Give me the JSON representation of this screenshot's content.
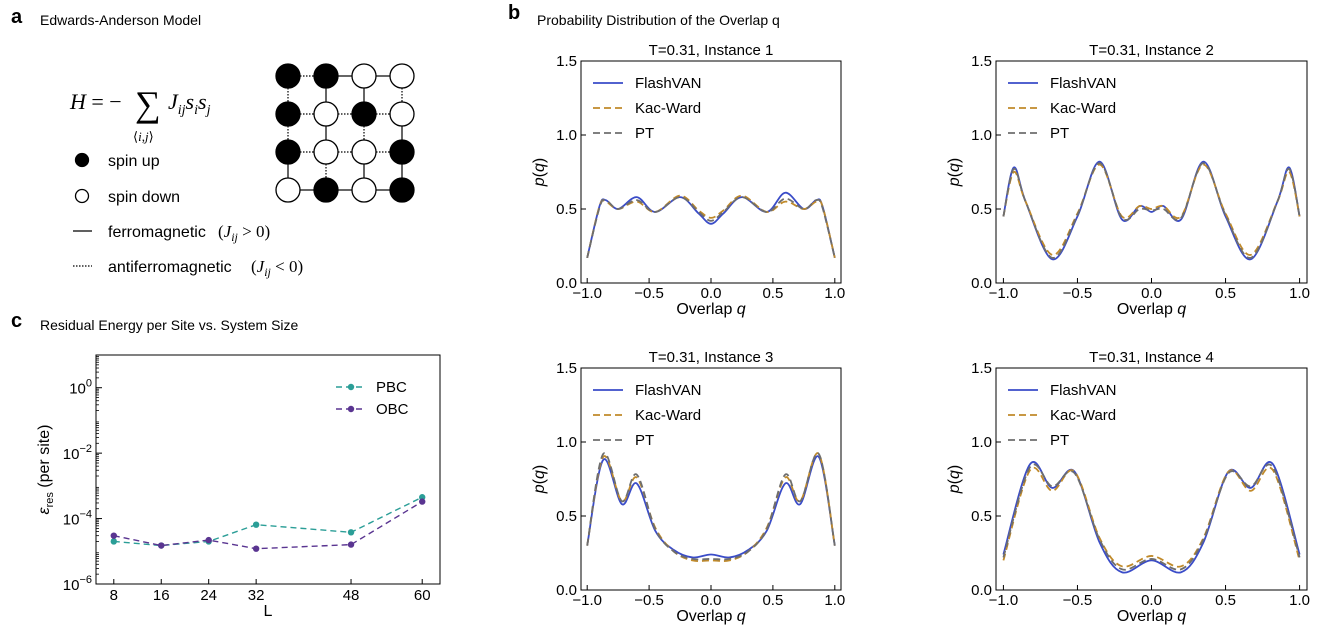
{
  "panel_labels": {
    "a": "a",
    "b": "b",
    "c": "c"
  },
  "panel_a": {
    "title": "Edwards-Anderson Model",
    "legend": {
      "spin_up": "spin up",
      "spin_down": "spin down",
      "ferro": "ferromagnetic",
      "ferro_cond": "> 0)",
      "antiferro": "antiferromagnetic",
      "antiferro_cond": "< 0)"
    },
    "lattice": {
      "spins": [
        [
          1,
          1,
          0,
          0
        ],
        [
          1,
          0,
          1,
          0
        ],
        [
          1,
          0,
          0,
          1
        ],
        [
          0,
          1,
          0,
          1
        ]
      ],
      "horizontal_bonds": [
        [
          0,
          1,
          1
        ],
        [
          0,
          0,
          0
        ],
        [
          0,
          0,
          0
        ],
        [
          1,
          1,
          1
        ]
      ],
      "vertical_bonds": [
        [
          0,
          1,
          1,
          0
        ],
        [
          0,
          1,
          0,
          1
        ],
        [
          1,
          0,
          1,
          1
        ]
      ],
      "legend_note": "1 = solid/filled (spin up, ferromagnetic), 0 = open/dotted"
    },
    "colors": {
      "spin_up": "#000000",
      "spin_down": "#ffffff",
      "bond": "#000000"
    }
  },
  "panel_b": {
    "title": "Probability Distribution of the Overlap q"
  },
  "panel_c": {
    "title": "Residual Energy per Site vs. System Size"
  },
  "chart_data": [
    {
      "type": "line",
      "title": "T=0.31, Instance 1",
      "xlabel": "Overlap q",
      "ylabel": "p(q)",
      "xlim": [
        -1.05,
        1.05
      ],
      "ylim": [
        0.0,
        1.5
      ],
      "xticks": [
        -1.0,
        -0.5,
        0.0,
        0.5,
        1.0
      ],
      "xtick_labels": [
        "−1.0",
        "−0.5",
        "0.0",
        "0.5",
        "1.0"
      ],
      "yticks": [
        0.0,
        0.5,
        1.0,
        1.5
      ],
      "ytick_labels": [
        "0.0",
        "0.5",
        "1.0",
        "1.5"
      ],
      "legend_position": "top-left",
      "x": [
        -1.0,
        -0.9,
        -0.85,
        -0.75,
        -0.6,
        -0.45,
        -0.25,
        -0.1,
        0.0,
        0.1,
        0.25,
        0.45,
        0.6,
        0.75,
        0.85,
        0.9,
        1.0
      ],
      "series": [
        {
          "name": "FlashVAN",
          "color": "#3a4cc8",
          "dash": "",
          "values": [
            0.17,
            0.52,
            0.56,
            0.5,
            0.58,
            0.48,
            0.58,
            0.47,
            0.4,
            0.47,
            0.58,
            0.48,
            0.61,
            0.5,
            0.56,
            0.52,
            0.17
          ]
        },
        {
          "name": "Kac-Ward",
          "color": "#c08a2a",
          "dash": "7,4",
          "values": [
            0.17,
            0.52,
            0.55,
            0.5,
            0.55,
            0.48,
            0.59,
            0.49,
            0.44,
            0.49,
            0.59,
            0.48,
            0.55,
            0.5,
            0.55,
            0.52,
            0.17
          ]
        },
        {
          "name": "PT",
          "color": "#6e6e6e",
          "dash": "7,4",
          "values": [
            0.17,
            0.51,
            0.56,
            0.5,
            0.56,
            0.48,
            0.58,
            0.48,
            0.42,
            0.48,
            0.58,
            0.48,
            0.57,
            0.5,
            0.56,
            0.51,
            0.17
          ]
        }
      ]
    },
    {
      "type": "line",
      "title": "T=0.31, Instance 2",
      "xlabel": "Overlap q",
      "ylabel": "p(q)",
      "xlim": [
        -1.05,
        1.05
      ],
      "ylim": [
        0.0,
        1.5
      ],
      "xticks": [
        -1.0,
        -0.5,
        0.0,
        0.5,
        1.0
      ],
      "xtick_labels": [
        "−1.0",
        "−0.5",
        "0.0",
        "0.5",
        "1.0"
      ],
      "yticks": [
        0.0,
        0.5,
        1.0,
        1.5
      ],
      "ytick_labels": [
        "0.0",
        "0.5",
        "1.0",
        "1.5"
      ],
      "legend_position": "top-left",
      "x": [
        -1.0,
        -0.93,
        -0.85,
        -0.67,
        -0.5,
        -0.35,
        -0.2,
        -0.08,
        0.0,
        0.08,
        0.2,
        0.35,
        0.5,
        0.67,
        0.85,
        0.93,
        1.0
      ],
      "series": [
        {
          "name": "FlashVAN",
          "color": "#3a4cc8",
          "dash": "",
          "values": [
            0.45,
            0.78,
            0.55,
            0.16,
            0.45,
            0.82,
            0.43,
            0.52,
            0.48,
            0.52,
            0.43,
            0.82,
            0.45,
            0.16,
            0.55,
            0.78,
            0.45
          ]
        },
        {
          "name": "Kac-Ward",
          "color": "#c08a2a",
          "dash": "7,4",
          "values": [
            0.45,
            0.75,
            0.55,
            0.19,
            0.47,
            0.8,
            0.45,
            0.52,
            0.5,
            0.52,
            0.45,
            0.8,
            0.47,
            0.19,
            0.55,
            0.75,
            0.45
          ]
        },
        {
          "name": "PT",
          "color": "#6e6e6e",
          "dash": "7,4",
          "values": [
            0.45,
            0.77,
            0.55,
            0.17,
            0.46,
            0.81,
            0.44,
            0.5,
            0.49,
            0.5,
            0.44,
            0.81,
            0.46,
            0.17,
            0.55,
            0.77,
            0.45
          ]
        }
      ]
    },
    {
      "type": "line",
      "title": "T=0.31, Instance 3",
      "xlabel": "Overlap q",
      "ylabel": "p(q)",
      "xlim": [
        -1.05,
        1.05
      ],
      "ylim": [
        0.0,
        1.5
      ],
      "xticks": [
        -1.0,
        -0.5,
        0.0,
        0.5,
        1.0
      ],
      "xtick_labels": [
        "−1.0",
        "−0.5",
        "0.0",
        "0.5",
        "1.0"
      ],
      "yticks": [
        0.0,
        0.5,
        1.0,
        1.5
      ],
      "ytick_labels": [
        "0.0",
        "0.5",
        "1.0",
        "1.5"
      ],
      "legend_position": "top-left",
      "x": [
        -1.0,
        -0.87,
        -0.72,
        -0.6,
        -0.45,
        -0.3,
        -0.15,
        0.0,
        0.15,
        0.3,
        0.45,
        0.6,
        0.72,
        0.87,
        1.0
      ],
      "series": [
        {
          "name": "FlashVAN",
          "color": "#3a4cc8",
          "dash": "",
          "values": [
            0.3,
            0.88,
            0.58,
            0.72,
            0.4,
            0.27,
            0.22,
            0.24,
            0.22,
            0.27,
            0.4,
            0.72,
            0.58,
            0.9,
            0.3
          ]
        },
        {
          "name": "Kac-Ward",
          "color": "#c08a2a",
          "dash": "7,4",
          "values": [
            0.3,
            0.9,
            0.6,
            0.76,
            0.42,
            0.26,
            0.2,
            0.2,
            0.2,
            0.26,
            0.42,
            0.76,
            0.6,
            0.92,
            0.3
          ]
        },
        {
          "name": "PT",
          "color": "#6e6e6e",
          "dash": "7,4",
          "values": [
            0.3,
            0.92,
            0.6,
            0.78,
            0.41,
            0.26,
            0.21,
            0.21,
            0.21,
            0.26,
            0.41,
            0.78,
            0.6,
            0.92,
            0.3
          ]
        }
      ]
    },
    {
      "type": "line",
      "title": "T=0.31, Instance 4",
      "xlabel": "Overlap q",
      "ylabel": "p(q)",
      "xlim": [
        -1.05,
        1.05
      ],
      "ylim": [
        0.0,
        1.5
      ],
      "xticks": [
        -1.0,
        -0.5,
        0.0,
        0.5,
        1.0
      ],
      "xtick_labels": [
        "−1.0",
        "−0.5",
        "0.0",
        "0.5",
        "1.0"
      ],
      "yticks": [
        0.0,
        0.5,
        1.0,
        1.5
      ],
      "ytick_labels": [
        "0.0",
        "0.5",
        "1.0",
        "1.5"
      ],
      "legend_position": "top-left",
      "x": [
        -1.0,
        -0.82,
        -0.67,
        -0.52,
        -0.35,
        -0.2,
        0.0,
        0.2,
        0.35,
        0.52,
        0.67,
        0.82,
        1.0
      ],
      "series": [
        {
          "name": "FlashVAN",
          "color": "#3a4cc8",
          "dash": "",
          "values": [
            0.24,
            0.85,
            0.69,
            0.8,
            0.32,
            0.12,
            0.2,
            0.12,
            0.32,
            0.8,
            0.69,
            0.85,
            0.24
          ]
        },
        {
          "name": "Kac-Ward",
          "color": "#c08a2a",
          "dash": "7,4",
          "values": [
            0.2,
            0.81,
            0.67,
            0.8,
            0.35,
            0.16,
            0.23,
            0.16,
            0.35,
            0.8,
            0.67,
            0.81,
            0.2
          ]
        },
        {
          "name": "PT",
          "color": "#6e6e6e",
          "dash": "7,4",
          "values": [
            0.22,
            0.83,
            0.7,
            0.79,
            0.34,
            0.14,
            0.21,
            0.14,
            0.34,
            0.79,
            0.7,
            0.83,
            0.22
          ]
        }
      ]
    },
    {
      "type": "line",
      "title": "",
      "xlabel": "L",
      "ylabel": "ε_res (per site)",
      "yscale": "log",
      "ylim": [
        1e-06,
        10
      ],
      "yticks": [
        1e-06,
        0.0001,
        0.01,
        1
      ],
      "xlim": [
        5,
        63
      ],
      "categories": [
        8,
        16,
        24,
        32,
        48,
        60
      ],
      "legend_position": "top-right",
      "series": [
        {
          "name": "PBC",
          "color": "#2b9e97",
          "dash": "6,4",
          "marker": "circle",
          "values": [
            2e-05,
            1.5e-05,
            2e-05,
            6.5e-05,
            3.8e-05,
            0.00045
          ]
        },
        {
          "name": "OBC",
          "color": "#5a3591",
          "dash": "6,4",
          "marker": "circle",
          "values": [
            3e-05,
            1.5e-05,
            2.2e-05,
            1.2e-05,
            1.6e-05,
            0.00033
          ]
        }
      ]
    }
  ]
}
